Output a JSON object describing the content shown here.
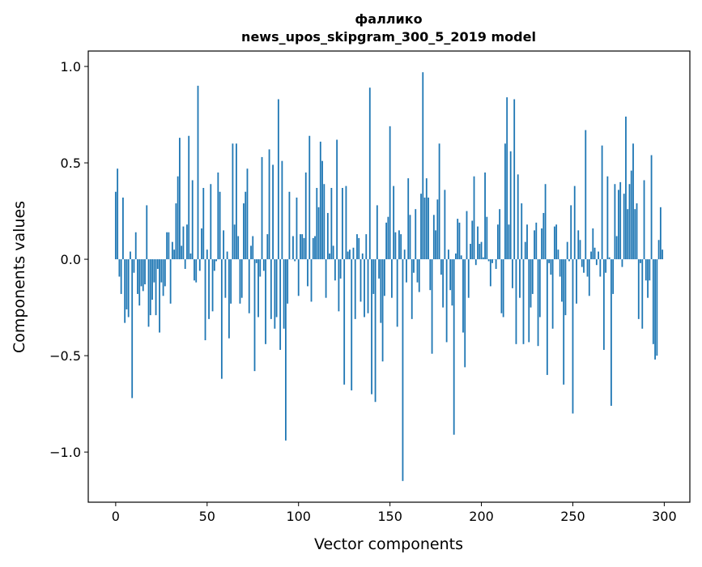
{
  "chart_data": {
    "type": "bar",
    "title": "фаллико",
    "subtitle": "news_upos_skipgram_300_5_2019 model",
    "xlabel": "Vector components",
    "ylabel": "Components values",
    "xlim": [
      -15,
      314
    ],
    "ylim": [
      -1.26,
      1.08
    ],
    "xticks": [
      0,
      50,
      100,
      150,
      200,
      250,
      300
    ],
    "xtick_labels": [
      "0",
      "50",
      "100",
      "150",
      "200",
      "250",
      "300"
    ],
    "yticks": [
      -1.0,
      -0.5,
      0.0,
      0.5,
      1.0
    ],
    "ytick_labels": [
      "−1.0",
      "−0.5",
      "0.0",
      "0.5",
      "1.0"
    ],
    "grid": false,
    "color": "#1f77b4",
    "values": [
      0.35,
      0.47,
      -0.09,
      -0.18,
      0.32,
      -0.33,
      -0.26,
      -0.3,
      0.04,
      -0.72,
      -0.07,
      0.14,
      -0.18,
      -0.24,
      -0.14,
      -0.165,
      -0.13,
      0.28,
      -0.35,
      -0.29,
      -0.21,
      -0.12,
      -0.29,
      -0.05,
      -0.38,
      -0.12,
      -0.19,
      -0.14,
      0.14,
      0.14,
      -0.23,
      0.09,
      0.05,
      0.29,
      0.43,
      0.63,
      0.07,
      0.17,
      -0.05,
      0.18,
      0.64,
      0.03,
      0.41,
      -0.11,
      -0.12,
      0.9,
      -0.06,
      0.16,
      0.37,
      -0.42,
      0.05,
      -0.31,
      0.39,
      -0.27,
      -0.06,
      -0.01,
      0.45,
      0.35,
      -0.62,
      0.15,
      -0.2,
      0.04,
      -0.41,
      -0.23,
      0.6,
      0.18,
      0.6,
      0.12,
      -0.23,
      -0.2,
      0.29,
      0.35,
      0.47,
      -0.28,
      0.07,
      0.12,
      -0.58,
      -0.02,
      -0.3,
      -0.09,
      0.53,
      -0.06,
      -0.44,
      0.13,
      0.57,
      -0.31,
      0.49,
      -0.36,
      -0.3,
      0.83,
      -0.47,
      0.51,
      -0.36,
      -0.94,
      -0.23,
      0.35,
      0.0,
      0.12,
      -0.01,
      0.32,
      -0.19,
      0.13,
      0.13,
      0.11,
      0.45,
      -0.14,
      0.64,
      -0.22,
      0.11,
      0.12,
      0.37,
      0.27,
      0.61,
      0.51,
      0.39,
      -0.2,
      0.24,
      0.03,
      0.37,
      0.07,
      -0.11,
      0.62,
      -0.27,
      -0.1,
      0.37,
      -0.65,
      0.38,
      0.04,
      0.05,
      -0.68,
      0.06,
      -0.31,
      0.13,
      0.11,
      -0.22,
      0.03,
      -0.3,
      0.13,
      -0.28,
      0.89,
      -0.7,
      -0.18,
      -0.74,
      0.28,
      -0.1,
      -0.33,
      -0.53,
      -0.19,
      0.19,
      0.22,
      0.69,
      -0.2,
      0.38,
      0.14,
      -0.35,
      0.15,
      0.13,
      -1.15,
      0.05,
      -0.12,
      0.42,
      0.23,
      -0.31,
      -0.07,
      0.26,
      -0.12,
      -0.17,
      0.34,
      0.97,
      0.32,
      0.42,
      0.32,
      -0.16,
      -0.49,
      0.23,
      0.15,
      0.31,
      0.6,
      -0.08,
      -0.25,
      0.36,
      -0.43,
      0.05,
      -0.16,
      -0.24,
      -0.91,
      0.03,
      0.21,
      0.19,
      0.02,
      -0.38,
      -0.56,
      0.25,
      -0.2,
      0.08,
      0.2,
      0.43,
      -0.03,
      0.17,
      0.08,
      0.09,
      0.01,
      0.45,
      0.22,
      -0.01,
      -0.14,
      -0.02,
      0.0,
      -0.05,
      0.18,
      0.26,
      -0.28,
      -0.3,
      0.6,
      0.84,
      0.18,
      0.56,
      -0.15,
      0.83,
      -0.44,
      0.44,
      -0.2,
      0.29,
      -0.44,
      0.09,
      0.18,
      -0.43,
      -0.25,
      -0.18,
      0.15,
      0.19,
      -0.45,
      -0.3,
      0.16,
      0.24,
      0.39,
      -0.6,
      -0.02,
      -0.08,
      -0.36,
      0.17,
      0.18,
      0.05,
      -0.09,
      -0.22,
      -0.65,
      -0.29,
      0.09,
      -0.01,
      0.28,
      -0.8,
      0.38,
      -0.23,
      0.15,
      0.1,
      -0.04,
      -0.07,
      0.67,
      -0.09,
      -0.19,
      0.04,
      0.16,
      0.06,
      -0.03,
      0.04,
      -0.09,
      0.59,
      -0.47,
      -0.07,
      0.43,
      0.01,
      -0.76,
      -0.18,
      0.39,
      0.12,
      0.36,
      0.4,
      -0.04,
      0.34,
      0.74,
      0.26,
      0.39,
      0.46,
      0.6,
      0.26,
      0.29,
      -0.31,
      -0.02,
      -0.36,
      0.41,
      -0.11,
      -0.2,
      -0.11,
      0.54,
      -0.44,
      -0.52,
      -0.5,
      0.1,
      0.27,
      0.05
    ]
  }
}
